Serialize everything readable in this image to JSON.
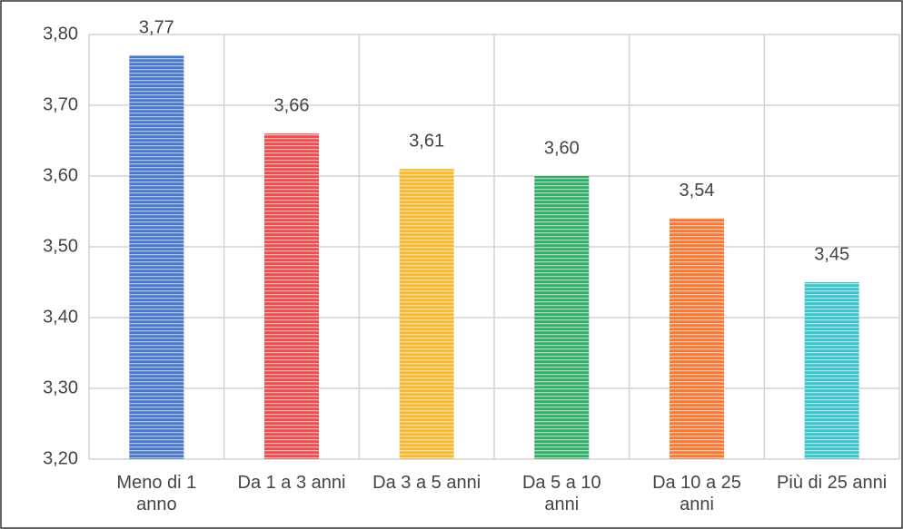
{
  "chart_data": {
    "type": "bar",
    "categories": [
      "Meno di 1 anno",
      "Da 1 a 3 anni",
      "Da 3 a 5 anni",
      "Da 5 a 10 anni",
      "Da 10 a 25 anni",
      "Più di 25 anni"
    ],
    "values": [
      3.77,
      3.66,
      3.61,
      3.6,
      3.54,
      3.45
    ],
    "value_labels": [
      "3,77",
      "3,66",
      "3,61",
      "3,60",
      "3,54",
      "3,45"
    ],
    "colors": [
      "#4a76c6",
      "#ec4d4f",
      "#f7b932",
      "#35ab68",
      "#f27a36",
      "#3cc3c9"
    ],
    "ylim": [
      3.2,
      3.8
    ],
    "yticks": [
      {
        "value": 3.2,
        "label": "3,20"
      },
      {
        "value": 3.3,
        "label": "3,30"
      },
      {
        "value": 3.4,
        "label": "3,40"
      },
      {
        "value": 3.5,
        "label": "3,50"
      },
      {
        "value": 3.6,
        "label": "3,60"
      },
      {
        "value": 3.7,
        "label": "3,70"
      },
      {
        "value": 3.8,
        "label": "3,80"
      }
    ],
    "grid": true
  }
}
